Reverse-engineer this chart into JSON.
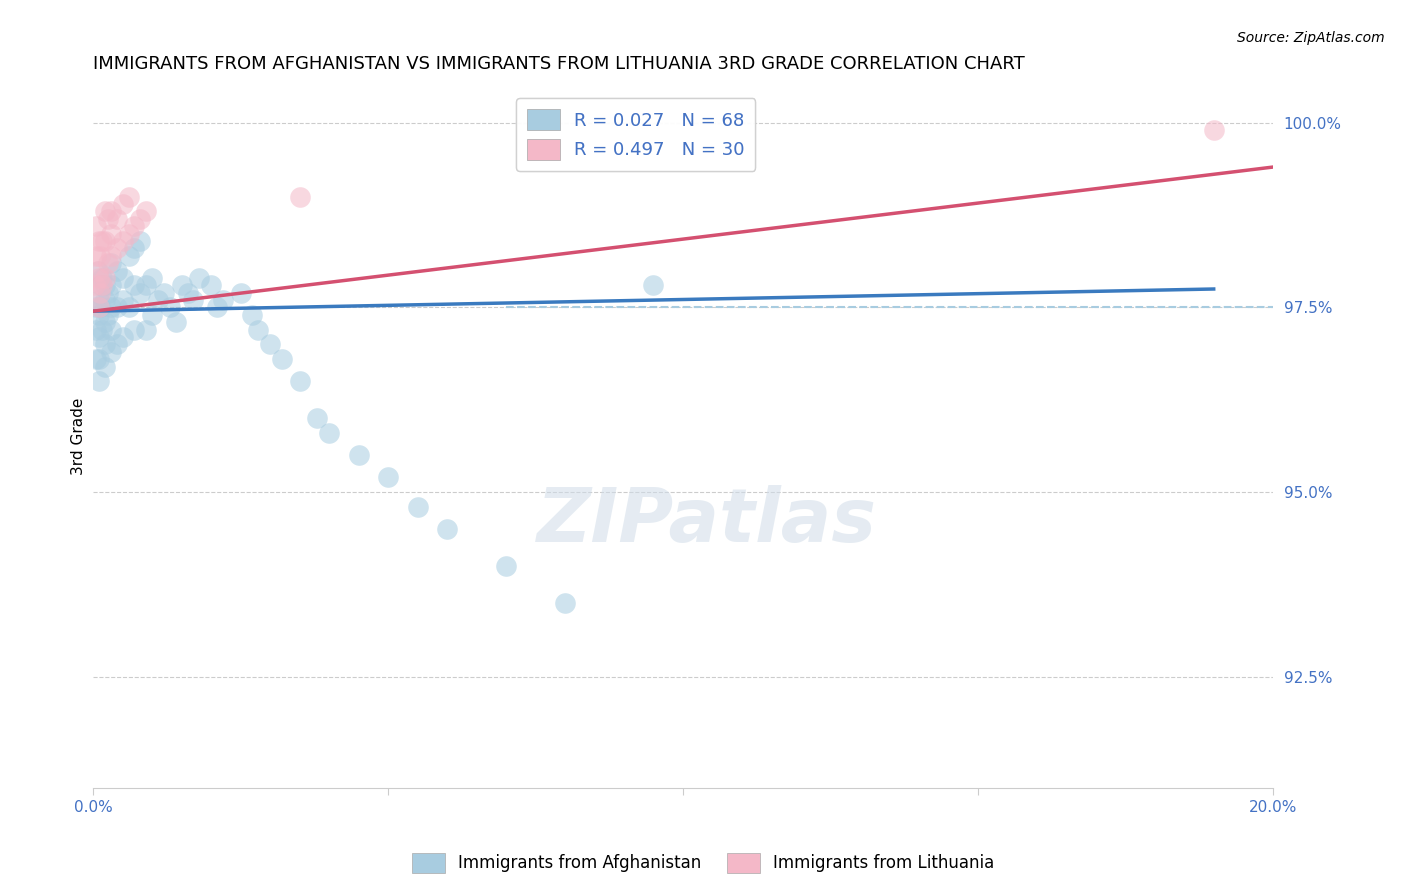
{
  "title": "IMMIGRANTS FROM AFGHANISTAN VS IMMIGRANTS FROM LITHUANIA 3RD GRADE CORRELATION CHART",
  "source": "Source: ZipAtlas.com",
  "ylabel": "3rd Grade",
  "xlim": [
    0.0,
    0.2
  ],
  "ylim": [
    0.91,
    1.005
  ],
  "yticks": [
    0.925,
    0.95,
    0.975,
    1.0
  ],
  "ytick_labels": [
    "92.5%",
    "95.0%",
    "97.5%",
    "100.0%"
  ],
  "xticks": [
    0.0,
    0.05,
    0.1,
    0.15,
    0.2
  ],
  "xtick_labels": [
    "0.0%",
    "",
    "",
    "",
    "20.0%"
  ],
  "blue_R": 0.027,
  "blue_N": 68,
  "pink_R": 0.497,
  "pink_N": 30,
  "blue_color": "#a8cce0",
  "pink_color": "#f4b8c8",
  "blue_line_color": "#3a7abf",
  "pink_line_color": "#d45070",
  "blue_tick_color": "#4472c4",
  "dashed_line_y": 0.975,
  "dashed_line_color": "#a8cce0",
  "blue_scatter_x": [
    0.0005,
    0.0005,
    0.0005,
    0.0008,
    0.001,
    0.001,
    0.001,
    0.001,
    0.001,
    0.0012,
    0.0012,
    0.0015,
    0.0015,
    0.002,
    0.002,
    0.002,
    0.002,
    0.002,
    0.0025,
    0.0025,
    0.003,
    0.003,
    0.003,
    0.003,
    0.003,
    0.004,
    0.004,
    0.004,
    0.005,
    0.005,
    0.005,
    0.006,
    0.006,
    0.007,
    0.007,
    0.007,
    0.008,
    0.008,
    0.009,
    0.009,
    0.01,
    0.01,
    0.011,
    0.012,
    0.013,
    0.014,
    0.015,
    0.016,
    0.017,
    0.018,
    0.02,
    0.021,
    0.022,
    0.025,
    0.027,
    0.028,
    0.03,
    0.032,
    0.035,
    0.038,
    0.04,
    0.045,
    0.05,
    0.055,
    0.06,
    0.07,
    0.08,
    0.095
  ],
  "blue_scatter_y": [
    0.975,
    0.972,
    0.968,
    0.98,
    0.976,
    0.974,
    0.971,
    0.968,
    0.965,
    0.978,
    0.975,
    0.979,
    0.972,
    0.976,
    0.973,
    0.97,
    0.967,
    0.978,
    0.977,
    0.974,
    0.981,
    0.978,
    0.975,
    0.972,
    0.969,
    0.98,
    0.975,
    0.97,
    0.979,
    0.976,
    0.971,
    0.982,
    0.975,
    0.983,
    0.978,
    0.972,
    0.984,
    0.977,
    0.978,
    0.972,
    0.979,
    0.974,
    0.976,
    0.977,
    0.975,
    0.973,
    0.978,
    0.977,
    0.976,
    0.979,
    0.978,
    0.975,
    0.976,
    0.977,
    0.974,
    0.972,
    0.97,
    0.968,
    0.965,
    0.96,
    0.958,
    0.955,
    0.952,
    0.948,
    0.945,
    0.94,
    0.935,
    0.978
  ],
  "pink_scatter_x": [
    0.0003,
    0.0005,
    0.0005,
    0.0008,
    0.001,
    0.001,
    0.001,
    0.0012,
    0.0012,
    0.0015,
    0.0015,
    0.002,
    0.002,
    0.002,
    0.0025,
    0.0025,
    0.003,
    0.003,
    0.003,
    0.004,
    0.004,
    0.005,
    0.005,
    0.006,
    0.006,
    0.007,
    0.008,
    0.009,
    0.035,
    0.19
  ],
  "pink_scatter_y": [
    0.978,
    0.982,
    0.986,
    0.98,
    0.975,
    0.979,
    0.984,
    0.977,
    0.982,
    0.978,
    0.984,
    0.979,
    0.984,
    0.988,
    0.981,
    0.987,
    0.982,
    0.988,
    0.985,
    0.983,
    0.987,
    0.984,
    0.989,
    0.985,
    0.99,
    0.986,
    0.987,
    0.988,
    0.99,
    0.999
  ],
  "background_color": "#ffffff",
  "grid_color": "#cccccc",
  "title_fontsize": 13,
  "axis_label_fontsize": 11,
  "tick_fontsize": 11,
  "legend_fontsize": 13,
  "blue_trend_x": [
    0.0,
    0.19
  ],
  "blue_trend_y": [
    0.9745,
    0.9775
  ],
  "pink_trend_x": [
    0.0,
    0.2
  ],
  "pink_trend_y": [
    0.9745,
    0.994
  ]
}
